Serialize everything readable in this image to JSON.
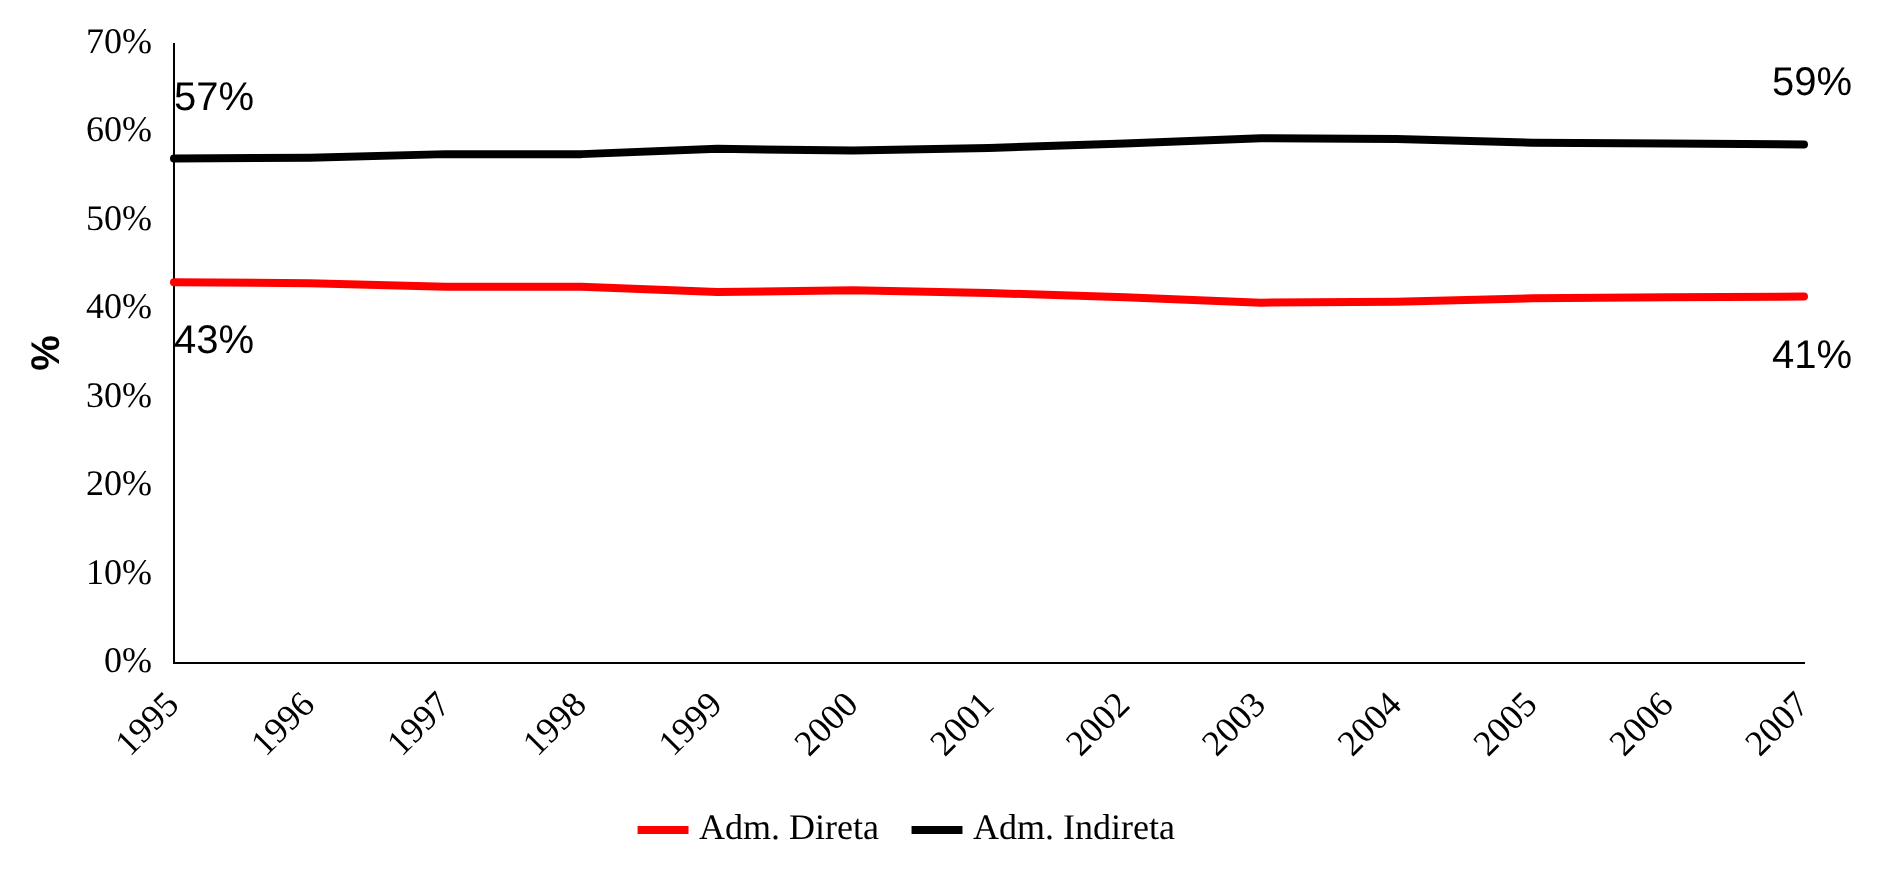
{
  "chart_data": {
    "type": "line",
    "ylabel": "%",
    "categories": [
      "1995",
      "1996",
      "1997",
      "1998",
      "1999",
      "2000",
      "2001",
      "2002",
      "2003",
      "2004",
      "2005",
      "2006",
      "2007"
    ],
    "series": [
      {
        "name": "Adm. Direta",
        "color": "#ff0000",
        "values": [
          43,
          42.9,
          42.5,
          42.5,
          41.9,
          42.1,
          41.8,
          41.3,
          40.7,
          40.8,
          41.2,
          41.3,
          41.4
        ]
      },
      {
        "name": "Adm. Indireta",
        "color": "#000000",
        "values": [
          57,
          57.1,
          57.5,
          57.5,
          58.1,
          57.9,
          58.2,
          58.7,
          59.3,
          59.2,
          58.8,
          58.7,
          58.6
        ]
      }
    ],
    "ylim": [
      0,
      70
    ],
    "yticks": [
      {
        "value": 0,
        "label": "0%"
      },
      {
        "value": 10,
        "label": "10%"
      },
      {
        "value": 20,
        "label": "20%"
      },
      {
        "value": 30,
        "label": "30%"
      },
      {
        "value": 40,
        "label": "40%"
      },
      {
        "value": 50,
        "label": "50%"
      },
      {
        "value": 60,
        "label": "60%"
      },
      {
        "value": 70,
        "label": "70%"
      }
    ],
    "annotations": [
      {
        "text": "57%",
        "x": "1995",
        "y": 57
      },
      {
        "text": "43%",
        "x": "1995",
        "y": 43
      },
      {
        "text": "59%",
        "x": "2007",
        "y": 58.6
      },
      {
        "text": "41%",
        "x": "2007",
        "y": 41.4
      }
    ],
    "grid": false,
    "legend": "bottom",
    "marker": "none",
    "line_style": "solid"
  }
}
